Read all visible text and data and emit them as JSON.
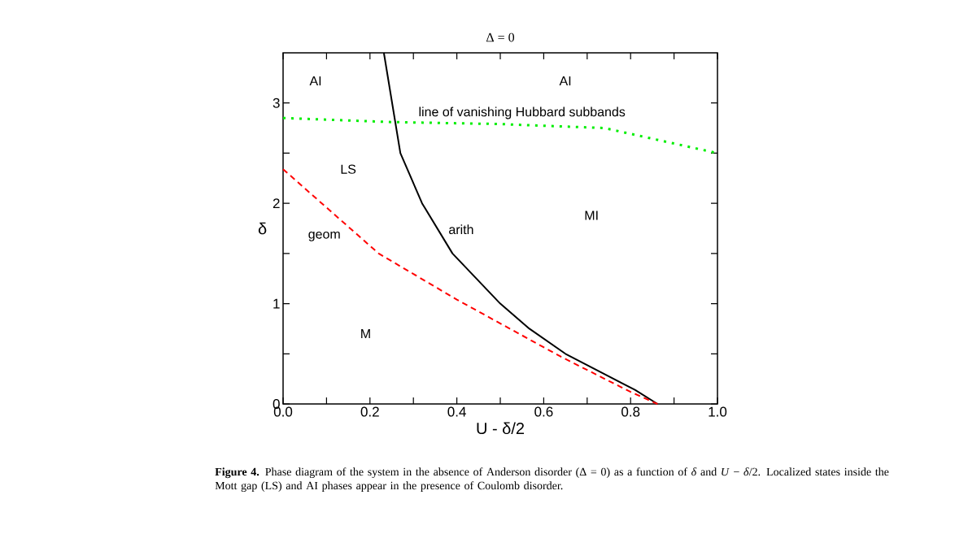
{
  "chart_data": {
    "type": "line",
    "title": "Δ = 0",
    "xlabel": "U - δ/2",
    "ylabel": "δ",
    "xlim": [
      0,
      1
    ],
    "ylim": [
      0,
      3.5
    ],
    "xticks": [
      {
        "value": 0,
        "label": "0.0"
      },
      {
        "value": 0.1,
        "label": null
      },
      {
        "value": 0.2,
        "label": "0.2"
      },
      {
        "value": 0.3,
        "label": null
      },
      {
        "value": 0.4,
        "label": "0.4"
      },
      {
        "value": 0.5,
        "label": null
      },
      {
        "value": 0.6,
        "label": "0.6"
      },
      {
        "value": 0.7,
        "label": null
      },
      {
        "value": 0.8,
        "label": "0.8"
      },
      {
        "value": 0.9,
        "label": null
      },
      {
        "value": 1,
        "label": "1.0"
      }
    ],
    "yticks": [
      0,
      {
        "value": 0.5,
        "label": null
      },
      1,
      {
        "value": 1.5,
        "label": null
      },
      2,
      {
        "value": 2.5,
        "label": null
      },
      3
    ],
    "marker": "none",
    "grid": false,
    "series": [
      {
        "color": "#000000",
        "line_style": "solid",
        "x": [
          0.232,
          0.27,
          0.32,
          0.39,
          0.5,
          0.567,
          0.65,
          0.81,
          0.862
        ],
        "values": [
          3.5,
          2.5,
          2.0,
          1.5,
          1.0,
          0.75,
          0.5,
          0.14,
          0
        ]
      },
      {
        "color": "#ff0000",
        "line_style": "dashed",
        "x": [
          0,
          0.22,
          0.4,
          0.64,
          0.8,
          0.862
        ],
        "values": [
          2.34,
          1.5,
          1.04,
          0.47,
          0.12,
          0
        ]
      },
      {
        "color": "#00ee00",
        "line_style": "dotted",
        "x": [
          0,
          0.25,
          0.5,
          0.74,
          1.0
        ],
        "values": [
          2.85,
          2.81,
          2.79,
          2.75,
          2.5
        ]
      }
    ],
    "annotations": [
      {
        "text": "AI",
        "x": 0.075,
        "y": 3.22
      },
      {
        "text": "AI",
        "x": 0.65,
        "y": 3.22
      },
      {
        "text": "line of vanishing Hubbard subbands",
        "x": 0.55,
        "y": 2.79
      },
      {
        "text": "LS",
        "x": 0.15,
        "y": 2.34
      },
      {
        "text": "MI",
        "x": 0.71,
        "y": 1.88
      },
      {
        "text": "geom",
        "x": 0.095,
        "y": 1.67
      },
      {
        "text": "arith",
        "x": 0.41,
        "y": 1.74
      },
      {
        "text": "M",
        "x": 0.19,
        "y": 0.7
      },
      "**Figure 4.** Phase diagram of the system in the absence of Anderson disorder (Δ = 0) as a function of *δ* and *U* − *δ*/2. Localized states inside the Mott gap (LS) and AI phases appear in the presence of Coulomb disorder."
    ]
  }
}
